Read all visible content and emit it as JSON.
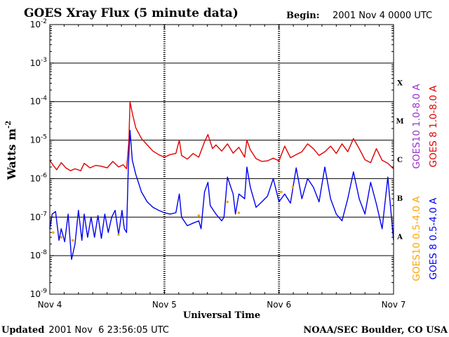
{
  "header": {
    "title": "GOES Xray Flux (5 minute data)",
    "begin_label": "Begin:",
    "begin_value": "2001 Nov 4 0000 UTC"
  },
  "footer": {
    "updated_label": "Updated",
    "updated_value": "2001 Nov  6 23:56:05 UTC",
    "credit": "NOAA/SEC Boulder, CO USA"
  },
  "colors": {
    "goes10_long": "#9933cc",
    "goes8_long": "#e00000",
    "goes10_short": "#ffa500",
    "goes8_short": "#0000ee"
  },
  "chart_data": {
    "type": "line",
    "title": "GOES Xray Flux (5 minute data)",
    "xlabel": "Universal Time",
    "ylabel": "Watts m",
    "ylabel_superscript": "-2",
    "y_scale": "log",
    "ylim": [
      1e-09,
      0.01
    ],
    "y_ticks": [
      {
        "base": "10",
        "exp": "-9",
        "value": 1e-09
      },
      {
        "base": "10",
        "exp": "-8",
        "value": 1e-08
      },
      {
        "base": "10",
        "exp": "-7",
        "value": 1e-07
      },
      {
        "base": "10",
        "exp": "-6",
        "value": 1e-06
      },
      {
        "base": "10",
        "exp": "-5",
        "value": 1e-05
      },
      {
        "base": "10",
        "exp": "-4",
        "value": 0.0001
      },
      {
        "base": "10",
        "exp": "-3",
        "value": 0.001
      },
      {
        "base": "10",
        "exp": "-2",
        "value": 0.01
      }
    ],
    "x_ticks": [
      {
        "label": "Nov 4",
        "day": 0
      },
      {
        "label": "Nov 5",
        "day": 1
      },
      {
        "label": "Nov 6",
        "day": 2
      },
      {
        "label": "Nov 7",
        "day": 3
      }
    ],
    "xlim_days_from_nov4": [
      0,
      3
    ],
    "flare_classes": [
      {
        "label": "X",
        "value": 0.000316
      },
      {
        "label": "M",
        "value": 3.16e-05
      },
      {
        "label": "C",
        "value": 3.16e-06
      },
      {
        "label": "B",
        "value": 3.16e-07
      },
      {
        "label": "A",
        "value": 3.16e-08
      }
    ],
    "grid": "horizontal lines at each decade; dotted vertical lines at day boundaries",
    "legend": [
      {
        "label": "GOES10 1.0-8.0 A",
        "color": "#9933cc"
      },
      {
        "label": "GOES 8 1.0-8.0 A",
        "color": "#e00000"
      },
      {
        "label": "GOES10 0.5-4.0 A",
        "color": "#ffa500"
      },
      {
        "label": "GOES 8 0.5-4.0 A",
        "color": "#0000ee"
      }
    ],
    "series": [
      {
        "name": "GOES 8 1.0-8.0 A",
        "color": "#e00000",
        "x": [
          0.0,
          0.03,
          0.06,
          0.1,
          0.14,
          0.18,
          0.22,
          0.27,
          0.3,
          0.35,
          0.4,
          0.45,
          0.5,
          0.55,
          0.6,
          0.64,
          0.67,
          0.69,
          0.7,
          0.72,
          0.75,
          0.8,
          0.85,
          0.9,
          0.95,
          1.0,
          1.05,
          1.1,
          1.13,
          1.15,
          1.2,
          1.25,
          1.3,
          1.35,
          1.38,
          1.42,
          1.45,
          1.5,
          1.55,
          1.6,
          1.65,
          1.7,
          1.72,
          1.75,
          1.8,
          1.85,
          1.9,
          1.95,
          2.0,
          2.05,
          2.1,
          2.15,
          2.2,
          2.25,
          2.3,
          2.35,
          2.4,
          2.45,
          2.5,
          2.55,
          2.6,
          2.65,
          2.7,
          2.75,
          2.8,
          2.85,
          2.9,
          2.95,
          3.0
        ],
        "y": [
          3e-06,
          2.2e-06,
          1.7e-06,
          2.6e-06,
          1.9e-06,
          1.6e-06,
          1.8e-06,
          1.6e-06,
          2.5e-06,
          1.9e-06,
          2.2e-06,
          2.1e-06,
          1.9e-06,
          2.8e-06,
          2e-06,
          2.3e-06,
          1.8e-06,
          9e-06,
          0.0001,
          5e-05,
          2.1e-05,
          1.1e-05,
          7.5e-06,
          5.2e-06,
          4.2e-06,
          3.6e-06,
          4.2e-06,
          4.5e-06,
          1e-05,
          4e-06,
          3.2e-06,
          4.5e-06,
          3.6e-06,
          9e-06,
          1.4e-05,
          6e-06,
          7.5e-06,
          5.2e-06,
          8e-06,
          4.6e-06,
          6.5e-06,
          3.6e-06,
          1e-05,
          5.6e-06,
          3.3e-06,
          2.8e-06,
          2.9e-06,
          3.4e-06,
          2.9e-06,
          7e-06,
          3.5e-06,
          4.2e-06,
          5e-06,
          8e-06,
          6e-06,
          4e-06,
          5e-06,
          7e-06,
          4.5e-06,
          8e-06,
          5e-06,
          1.1e-05,
          6e-06,
          3.1e-06,
          2.6e-06,
          6e-06,
          3e-06,
          2.5e-06,
          1.8e-06
        ]
      },
      {
        "name": "GOES 8 0.5-4.0 A",
        "color": "#0000ee",
        "x": [
          0.0,
          0.02,
          0.05,
          0.08,
          0.1,
          0.13,
          0.16,
          0.19,
          0.22,
          0.25,
          0.28,
          0.3,
          0.33,
          0.36,
          0.39,
          0.42,
          0.45,
          0.48,
          0.51,
          0.54,
          0.57,
          0.6,
          0.63,
          0.65,
          0.67,
          0.685,
          0.7,
          0.72,
          0.75,
          0.8,
          0.85,
          0.9,
          0.95,
          1.0,
          1.05,
          1.1,
          1.13,
          1.15,
          1.2,
          1.25,
          1.3,
          1.32,
          1.35,
          1.38,
          1.4,
          1.45,
          1.5,
          1.52,
          1.55,
          1.6,
          1.62,
          1.65,
          1.7,
          1.72,
          1.75,
          1.8,
          1.85,
          1.9,
          1.95,
          2.0,
          2.05,
          2.1,
          2.15,
          2.2,
          2.25,
          2.3,
          2.35,
          2.4,
          2.45,
          2.5,
          2.55,
          2.6,
          2.65,
          2.7,
          2.75,
          2.8,
          2.85,
          2.9,
          2.95,
          3.0
        ],
        "y": [
          5e-08,
          1.2e-07,
          1.4e-07,
          2.5e-08,
          5e-08,
          2.3e-08,
          1.2e-07,
          8e-09,
          2e-08,
          1.5e-07,
          2.5e-08,
          1.2e-07,
          3e-08,
          1e-07,
          3e-08,
          1.1e-07,
          2.8e-08,
          1.2e-07,
          4e-08,
          1e-07,
          1.5e-07,
          3.5e-08,
          1.5e-07,
          5e-08,
          4e-08,
          2e-06,
          1.8e-05,
          3e-06,
          1.3e-06,
          4.5e-07,
          2.5e-07,
          1.8e-07,
          1.5e-07,
          1.3e-07,
          1.2e-07,
          1.3e-07,
          4e-07,
          1e-07,
          6e-08,
          7e-08,
          8e-08,
          5e-08,
          4.5e-07,
          8e-07,
          2e-07,
          1.2e-07,
          8e-08,
          1e-07,
          1.1e-06,
          4e-07,
          1.2e-07,
          4e-07,
          3e-07,
          2e-06,
          6e-07,
          1.8e-07,
          2.5e-07,
          3.5e-07,
          1e-06,
          2.5e-07,
          4e-07,
          2.3e-07,
          1.9e-06,
          3e-07,
          1e-06,
          6e-07,
          2.5e-07,
          2e-06,
          3e-07,
          1.2e-07,
          8e-08,
          3e-07,
          1.5e-06,
          3e-07,
          1.2e-07,
          8e-07,
          2.2e-07,
          5e-08,
          1.1e-06,
          2.5e-08
        ]
      },
      {
        "name": "GOES10 0.5-4.0 A",
        "color": "#ffa500",
        "x": [
          0.03,
          0.1,
          0.2,
          0.6,
          1.3,
          1.55,
          1.65,
          2.02,
          2.12
        ],
        "y": [
          4e-08,
          3e-08,
          2.5e-08,
          3.5e-08,
          1.1e-07,
          2.5e-07,
          1.3e-07,
          4.5e-07,
          6e-07
        ]
      },
      {
        "name": "GOES10 1.0-8.0 A",
        "color": "#9933cc",
        "x": [],
        "y": []
      }
    ]
  }
}
